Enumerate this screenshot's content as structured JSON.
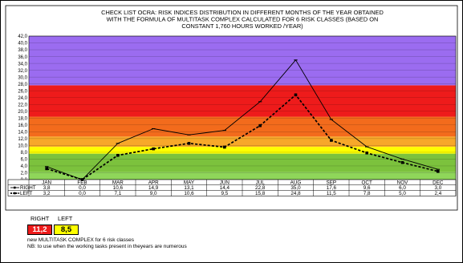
{
  "chart_data": {
    "type": "line",
    "title": "CHECK LIST OCRA: RISK INDICES  DISTRIBUTION  IN DIFFERENT  MONTHS OF THE YEAR OBTAINED WITH THE FORMULA OF MULTITASK COMPLEX  CALCULATED FOR 6 RISK CLASSES (BASED ON CONSTANT  1,760 HOURS  WORKED  /YEAR)",
    "title_lines": [
      "CHECK LIST OCRA: RISK INDICES  DISTRIBUTION  IN DIFFERENT  MONTHS OF THE YEAR OBTAINED",
      "WITH THE FORMULA OF MULTITASK COMPLEX  CALCULATED FOR 6 RISK CLASSES (BASED ON",
      "CONSTANT  1,760 HOURS  WORKED  /YEAR)"
    ],
    "categories": [
      "JAN",
      "FEB",
      "MAR",
      "APR",
      "MAY",
      "JUN",
      "JUL",
      "AUG",
      "SEP",
      "OCT",
      "NOV",
      "DEC"
    ],
    "series": [
      {
        "name": "RIGHT",
        "values": [
          3.8,
          0.0,
          10.6,
          14.9,
          13.1,
          14.4,
          22.8,
          35.0,
          17.6,
          9.6,
          6.0,
          3.0
        ],
        "labels": [
          "3,8",
          "0,0",
          "10,6",
          "14,9",
          "13,1",
          "14,4",
          "22,8",
          "35,0",
          "17,6",
          "9,6",
          "6,0",
          "3,0"
        ]
      },
      {
        "name": "LEFT",
        "values": [
          3.2,
          0.0,
          7.1,
          9.0,
          10.6,
          9.5,
          15.8,
          24.8,
          11.5,
          7.8,
          5.0,
          2.4
        ],
        "labels": [
          "3,2",
          "0,0",
          "7,1",
          "9,0",
          "10,6",
          "9,5",
          "15,8",
          "24,8",
          "11,5",
          "7,8",
          "5,0",
          "2,4"
        ]
      }
    ],
    "ylim": [
      0,
      42
    ],
    "ytick_step": 2,
    "ytick_labels": [
      "0,0",
      "2,0",
      "4,0",
      "6,0",
      "8,0",
      "10,0",
      "12,0",
      "14,0",
      "16,0",
      "18,0",
      "20,0",
      "22,0",
      "24,0",
      "26,0",
      "28,0",
      "30,0",
      "32,0",
      "34,0",
      "36,0",
      "38,0",
      "40,0",
      "42,0"
    ],
    "risk_bands": [
      {
        "from": 0,
        "to": 2.2,
        "color": "#8fd65a"
      },
      {
        "from": 2.2,
        "to": 7.6,
        "color": "#7cc23d"
      },
      {
        "from": 7.6,
        "to": 9.6,
        "color": "#ffff00"
      },
      {
        "from": 9.6,
        "to": 12.6,
        "color": "#f7a82a"
      },
      {
        "from": 12.6,
        "to": 18.4,
        "color": "#f36b1c"
      },
      {
        "from": 18.4,
        "to": 27.6,
        "color": "#ee1b1b"
      },
      {
        "from": 27.6,
        "to": 42,
        "color": "#9b6cf0"
      }
    ],
    "grid": true
  },
  "legend_box": {
    "right_label": "RIGHT",
    "left_label": "LEFT",
    "right_value": "11,2",
    "left_value": "8,5",
    "right_color": "#ee1b1b",
    "left_color": "#ffff00",
    "note1": "new MULTITASK COMPLEX for 6 risk classes",
    "note2": "NB: to use when the working tasks present in theyears are numerous"
  }
}
